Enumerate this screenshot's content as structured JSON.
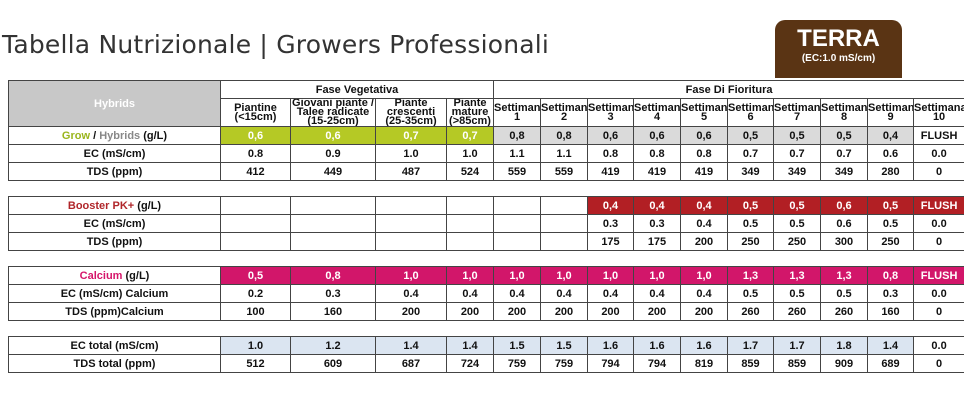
{
  "title": "Tabella Nutrizionale | Growers Professionali",
  "badge": {
    "main": "TERRA",
    "sub": "(EC:1.0 mS/cm)"
  },
  "table": {
    "corner_label": "Hybrids",
    "phase_vegetative": "Fase Vegetativa",
    "phase_flowering": "Fase Di Fioritura",
    "veg_stages": [
      {
        "line1": "Piantine",
        "line2": "(<15cm)"
      },
      {
        "line1": "Giovani piante /",
        "line2": "Talee radicate",
        "line3": "(15-25cm)"
      },
      {
        "line1": "Piante",
        "line2": "crescenti",
        "line3": "(25-35cm)"
      },
      {
        "line1": "Piante",
        "line2": "mature",
        "line3": "(>85cm)"
      }
    ],
    "week_label": "Settimana",
    "weeks": [
      "1",
      "2",
      "3",
      "4",
      "5",
      "6",
      "7",
      "8",
      "9",
      "10"
    ],
    "grow": {
      "label_grow": "Grow",
      "label_sep": " / ",
      "label_hyb": "Hybrids",
      "label_unit": " (g/L)",
      "dose": [
        "0,6",
        "0,6",
        "0,7",
        "0,7",
        "0,8",
        "0,8",
        "0,6",
        "0,6",
        "0,6",
        "0,5",
        "0,5",
        "0,5",
        "0,4",
        "FLUSH"
      ],
      "ec_label": "EC (mS/cm)",
      "ec": [
        "0.8",
        "0.9",
        "1.0",
        "1.0",
        "1.1",
        "1.1",
        "0.8",
        "0.8",
        "0.8",
        "0.7",
        "0.7",
        "0.7",
        "0.6",
        "0.0"
      ],
      "tds_label": "TDS (ppm)",
      "tds": [
        "412",
        "449",
        "487",
        "524",
        "559",
        "559",
        "419",
        "419",
        "419",
        "349",
        "349",
        "349",
        "280",
        "0"
      ]
    },
    "booster": {
      "label_name": "Booster PK+",
      "label_unit": " (g/L)",
      "dose": [
        "",
        "",
        "",
        "",
        "",
        "",
        "0,4",
        "0,4",
        "0,4",
        "0,5",
        "0,5",
        "0,6",
        "0,5",
        "FLUSH"
      ],
      "ec_label": "EC (mS/cm)",
      "ec": [
        "",
        "",
        "",
        "",
        "",
        "",
        "0.3",
        "0.3",
        "0.4",
        "0.5",
        "0.5",
        "0.6",
        "0.5",
        "0.0"
      ],
      "tds_label": "TDS (ppm)",
      "tds": [
        "",
        "",
        "",
        "",
        "",
        "",
        "175",
        "175",
        "200",
        "250",
        "250",
        "300",
        "250",
        "0"
      ]
    },
    "calcium": {
      "label_name": "Calcium",
      "label_unit": " (g/L)",
      "dose": [
        "0,5",
        "0,8",
        "1,0",
        "1,0",
        "1,0",
        "1,0",
        "1,0",
        "1,0",
        "1,0",
        "1,3",
        "1,3",
        "1,3",
        "0,8",
        "FLUSH"
      ],
      "ec_label": "EC (mS/cm) Calcium",
      "ec": [
        "0.2",
        "0.3",
        "0.4",
        "0.4",
        "0.4",
        "0.4",
        "0.4",
        "0.4",
        "0.4",
        "0.5",
        "0.5",
        "0.5",
        "0.3",
        "0.0"
      ],
      "tds_label": "TDS (ppm)Calcium",
      "tds": [
        "100",
        "160",
        "200",
        "200",
        "200",
        "200",
        "200",
        "200",
        "200",
        "260",
        "260",
        "260",
        "160",
        "0"
      ]
    },
    "totals": {
      "ec_label": "EC total (mS/cm)",
      "ec": [
        "1.0",
        "1.2",
        "1.4",
        "1.4",
        "1.5",
        "1.5",
        "1.6",
        "1.6",
        "1.6",
        "1.7",
        "1.7",
        "1.8",
        "1.4",
        "0.0"
      ],
      "tds_label": "TDS total (ppm)",
      "tds": [
        "512",
        "609",
        "687",
        "724",
        "759",
        "759",
        "794",
        "794",
        "819",
        "859",
        "859",
        "909",
        "689",
        "0"
      ]
    },
    "colors": {
      "grow_veg": "#b5c925",
      "grow_flower": "#dadada",
      "booster": "#b21f24",
      "calcium": "#d2166a",
      "total": "#dbe5f1",
      "badge": "#5a3414"
    }
  }
}
